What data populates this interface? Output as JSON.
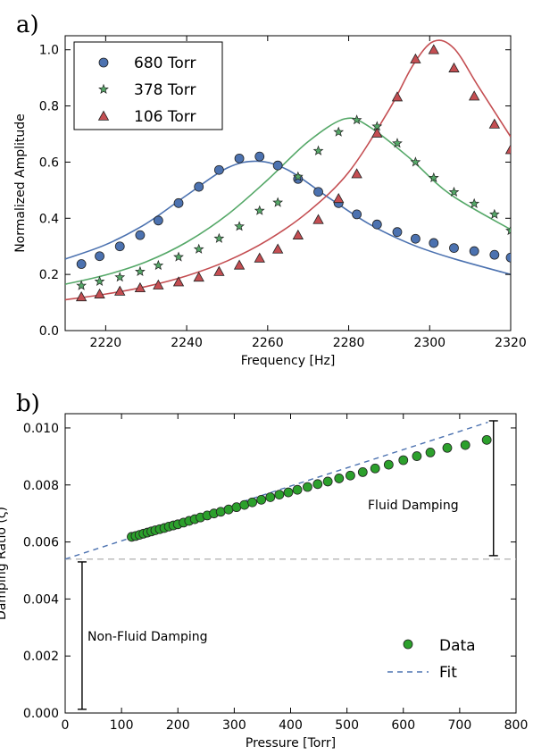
{
  "chart_data": [
    {
      "type": "scatter",
      "panel_label": "a)",
      "xlabel": "Frequency [Hz]",
      "ylabel": "Normalized Amplitude",
      "xlim": [
        2210,
        2320
      ],
      "ylim": [
        0.0,
        1.05
      ],
      "xticks": [
        "2220",
        "2240",
        "2260",
        "2280",
        "2300",
        "2320"
      ],
      "yticks": [
        "0.0",
        "0.2",
        "0.4",
        "0.6",
        "0.8",
        "1.0"
      ],
      "grid": false,
      "legend_position": "top-left",
      "series": [
        {
          "name": "680 Torr",
          "marker": "circle",
          "color": "#4c72b0",
          "points": [
            [
              2214,
              0.237
            ],
            [
              2218.5,
              0.265
            ],
            [
              2223.5,
              0.3
            ],
            [
              2228.5,
              0.34
            ],
            [
              2233,
              0.392
            ],
            [
              2238,
              0.454
            ],
            [
              2243,
              0.512
            ],
            [
              2248,
              0.572
            ],
            [
              2253,
              0.613
            ],
            [
              2258,
              0.62
            ],
            [
              2262.5,
              0.588
            ],
            [
              2267.5,
              0.54
            ],
            [
              2272.5,
              0.494
            ],
            [
              2277.5,
              0.454
            ],
            [
              2282,
              0.414
            ],
            [
              2287,
              0.378
            ],
            [
              2292,
              0.351
            ],
            [
              2296.5,
              0.327
            ],
            [
              2301,
              0.312
            ],
            [
              2306,
              0.294
            ],
            [
              2311,
              0.283
            ],
            [
              2316,
              0.27
            ],
            [
              2320,
              0.26
            ]
          ],
          "fit": [
            [
              2210,
              0.255
            ],
            [
              2220,
              0.306
            ],
            [
              2230,
              0.381
            ],
            [
              2240,
              0.482
            ],
            [
              2250,
              0.579
            ],
            [
              2257.5,
              0.603
            ],
            [
              2265,
              0.572
            ],
            [
              2275,
              0.474
            ],
            [
              2285,
              0.38
            ],
            [
              2295,
              0.31
            ],
            [
              2305,
              0.26
            ],
            [
              2320,
              0.2
            ]
          ]
        },
        {
          "name": "378 Torr",
          "marker": "star",
          "color": "#55a868",
          "points": [
            [
              2214,
              0.16
            ],
            [
              2218.5,
              0.175
            ],
            [
              2223.5,
              0.19
            ],
            [
              2228.5,
              0.21
            ],
            [
              2233,
              0.232
            ],
            [
              2238,
              0.262
            ],
            [
              2243,
              0.29
            ],
            [
              2248,
              0.328
            ],
            [
              2253,
              0.371
            ],
            [
              2258,
              0.427
            ],
            [
              2262.5,
              0.456
            ],
            [
              2267.5,
              0.548
            ],
            [
              2272.5,
              0.64
            ],
            [
              2277.5,
              0.707
            ],
            [
              2282,
              0.75
            ],
            [
              2287,
              0.727
            ],
            [
              2292,
              0.667
            ],
            [
              2296.5,
              0.6
            ],
            [
              2301,
              0.544
            ],
            [
              2306,
              0.493
            ],
            [
              2311,
              0.452
            ],
            [
              2316,
              0.414
            ],
            [
              2320,
              0.356
            ]
          ],
          "fit": [
            [
              2210,
              0.165
            ],
            [
              2220,
              0.198
            ],
            [
              2230,
              0.245
            ],
            [
              2240,
              0.315
            ],
            [
              2250,
              0.412
            ],
            [
              2260,
              0.537
            ],
            [
              2270,
              0.673
            ],
            [
              2279,
              0.754
            ],
            [
              2285,
              0.727
            ],
            [
              2295,
              0.615
            ],
            [
              2305,
              0.486
            ],
            [
              2320,
              0.36
            ]
          ]
        },
        {
          "name": "106 Torr",
          "marker": "triangle",
          "color": "#c44e52",
          "points": [
            [
              2214,
              0.12
            ],
            [
              2218.5,
              0.13
            ],
            [
              2223.5,
              0.14
            ],
            [
              2228.5,
              0.152
            ],
            [
              2233,
              0.162
            ],
            [
              2238,
              0.173
            ],
            [
              2243,
              0.19
            ],
            [
              2248,
              0.21
            ],
            [
              2253,
              0.233
            ],
            [
              2258,
              0.258
            ],
            [
              2262.5,
              0.29
            ],
            [
              2267.5,
              0.34
            ],
            [
              2272.5,
              0.395
            ],
            [
              2277.5,
              0.47
            ],
            [
              2282,
              0.558
            ],
            [
              2287,
              0.703
            ],
            [
              2292,
              0.832
            ],
            [
              2296.5,
              0.967
            ],
            [
              2301,
              1.0
            ],
            [
              2306,
              0.935
            ],
            [
              2311,
              0.835
            ],
            [
              2316,
              0.735
            ],
            [
              2320,
              0.644
            ]
          ],
          "fit": [
            [
              2210,
              0.11
            ],
            [
              2220,
              0.13
            ],
            [
              2230,
              0.157
            ],
            [
              2240,
              0.195
            ],
            [
              2250,
              0.248
            ],
            [
              2260,
              0.322
            ],
            [
              2270,
              0.423
            ],
            [
              2280,
              0.564
            ],
            [
              2290,
              0.787
            ],
            [
              2296,
              0.948
            ],
            [
              2301,
              1.03
            ],
            [
              2306,
              1.005
            ],
            [
              2312,
              0.87
            ],
            [
              2320,
              0.69
            ]
          ]
        }
      ]
    },
    {
      "type": "scatter",
      "panel_label": "b)",
      "xlabel": "Pressure [Torr]",
      "ylabel": "Damping Ratio (ζ)",
      "xlim": [
        0,
        800
      ],
      "ylim": [
        0.0,
        0.0105
      ],
      "xticks": [
        "0",
        "100",
        "200",
        "300",
        "400",
        "500",
        "600",
        "700",
        "800"
      ],
      "yticks": [
        "0.000",
        "0.002",
        "0.004",
        "0.006",
        "0.008",
        "0.010"
      ],
      "grid": false,
      "legend_position": "bottom-right",
      "baseline_value": 0.0054,
      "annotations": {
        "fluid": "Fluid Damping",
        "non_fluid": "Non-Fluid Damping"
      },
      "series": [
        {
          "name": "Data",
          "marker": "circle",
          "color": "#2ca02c",
          "x": [
            118,
            125,
            132,
            139,
            146,
            153,
            160,
            168,
            176,
            184,
            192,
            200,
            210,
            220,
            230,
            240,
            252,
            264,
            276,
            290,
            304,
            318,
            332,
            348,
            364,
            380,
            396,
            412,
            430,
            448,
            466,
            486,
            506,
            528,
            550,
            574,
            600,
            624,
            648,
            678,
            710,
            748
          ],
          "y": [
            0.00618,
            0.00621,
            0.00625,
            0.00629,
            0.00633,
            0.00637,
            0.00641,
            0.00645,
            0.00649,
            0.00654,
            0.00658,
            0.00662,
            0.00668,
            0.00674,
            0.0068,
            0.00686,
            0.00693,
            0.007,
            0.00706,
            0.00714,
            0.00722,
            0.0073,
            0.00739,
            0.00748,
            0.00757,
            0.00766,
            0.00774,
            0.00783,
            0.00793,
            0.00803,
            0.00812,
            0.00823,
            0.00833,
            0.00845,
            0.00858,
            0.00871,
            0.00887,
            0.00901,
            0.00914,
            0.0093,
            0.0094,
            0.00958
          ]
        },
        {
          "name": "Fit",
          "style": "dashed",
          "color": "#4c72b0",
          "x": [
            0,
            750
          ],
          "y": [
            0.0054,
            0.0102
          ]
        }
      ]
    }
  ]
}
